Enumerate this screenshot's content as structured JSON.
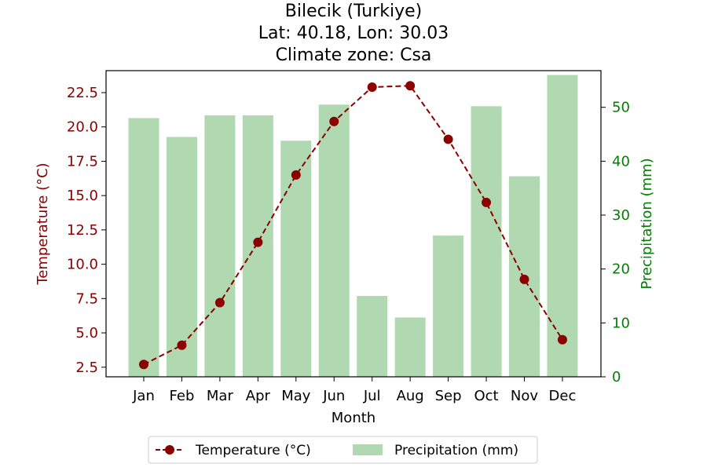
{
  "chart_data": {
    "type": "bar+line",
    "title_lines": [
      "Bilecik (Turkiye)",
      "Lat: 40.18, Lon: 30.03",
      "Climate zone: Csa"
    ],
    "xlabel": "Month",
    "categories": [
      "Jan",
      "Feb",
      "Mar",
      "Apr",
      "May",
      "Jun",
      "Jul",
      "Aug",
      "Sep",
      "Oct",
      "Nov",
      "Dec"
    ],
    "left_axis": {
      "label": "Temperature (°C)",
      "ylim": [
        1.8,
        24.1
      ],
      "ticks": [
        2.5,
        5.0,
        7.5,
        10.0,
        12.5,
        15.0,
        17.5,
        20.0,
        22.5
      ],
      "tick_labels": [
        "2.5",
        "5.0",
        "7.5",
        "10.0",
        "12.5",
        "15.0",
        "17.5",
        "20.0",
        "22.5"
      ],
      "color": "#8b0000"
    },
    "right_axis": {
      "label": "Precipitation (mm)",
      "ylim": [
        0,
        56.8
      ],
      "ticks": [
        0,
        10,
        20,
        30,
        40,
        50
      ],
      "tick_labels": [
        "0",
        "10",
        "20",
        "30",
        "40",
        "50"
      ],
      "color": "#008000"
    },
    "series": [
      {
        "name": "Temperature (°C)",
        "kind": "line",
        "axis": "left",
        "color": "#8b0000",
        "values": [
          2.7,
          4.1,
          7.2,
          11.6,
          16.5,
          20.4,
          22.9,
          23.0,
          19.1,
          14.5,
          8.9,
          4.5
        ]
      },
      {
        "name": "Precipitation (mm)",
        "kind": "bar",
        "axis": "right",
        "color": "#b1d9b1",
        "values": [
          48.0,
          44.5,
          48.5,
          48.5,
          43.8,
          50.5,
          15.0,
          11.0,
          26.2,
          50.2,
          37.2,
          56.0
        ]
      }
    ],
    "legend_position": "bottom-center",
    "grid": false
  }
}
